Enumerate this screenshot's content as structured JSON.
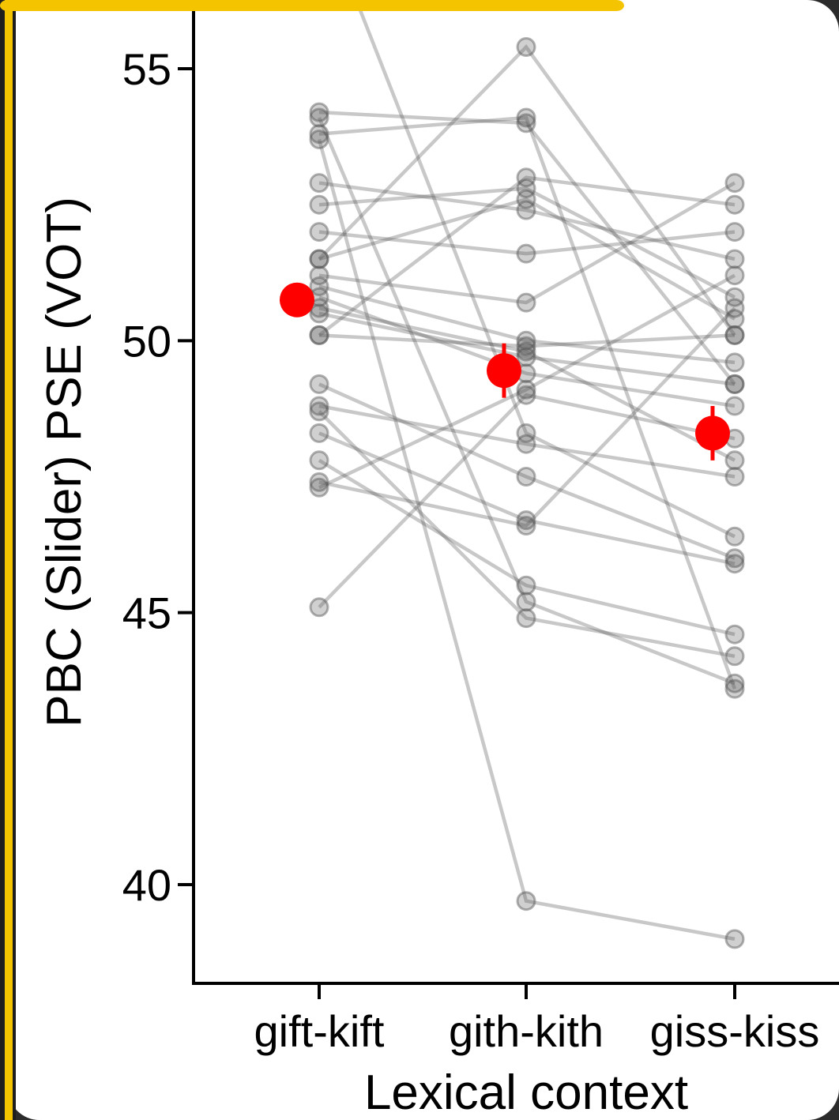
{
  "chart_data": {
    "type": "scatter",
    "title": "",
    "xlabel": "Lexical context",
    "ylabel": "PBC (Slider) PSE (VOT)",
    "categories": [
      "gift-kift",
      "gith-kith",
      "giss-kiss"
    ],
    "ylim": [
      38.2,
      56.2
    ],
    "yticks": [
      40,
      45,
      50,
      55
    ],
    "grid": false,
    "legend": "none",
    "colors": {
      "individual": "#555555",
      "mean": "#ff0000",
      "frame": "#f5c400"
    },
    "individual_lines": [
      [
        58.0,
        48.3,
        46.4
      ],
      [
        54.2,
        54.0,
        49.2
      ],
      [
        53.8,
        54.1,
        43.6
      ],
      [
        52.9,
        52.4,
        51.5
      ],
      [
        52.5,
        52.8,
        50.8
      ],
      [
        52.0,
        51.6,
        52.0
      ],
      [
        51.5,
        52.6,
        50.4
      ],
      [
        51.2,
        50.7,
        52.9
      ],
      [
        51.0,
        50.0,
        49.6
      ],
      [
        50.8,
        49.4,
        48.8
      ],
      [
        50.6,
        49.8,
        47.8
      ],
      [
        50.5,
        49.7,
        49.2
      ],
      [
        50.1,
        49.9,
        50.1
      ],
      [
        50.1,
        53.0,
        52.5
      ],
      [
        49.2,
        47.5,
        46.0
      ],
      [
        48.8,
        48.1,
        47.5
      ],
      [
        48.7,
        44.9,
        44.2
      ],
      [
        48.3,
        46.7,
        45.9
      ],
      [
        47.8,
        45.5,
        44.6
      ],
      [
        47.4,
        46.6,
        50.6
      ],
      [
        47.3,
        49.1,
        51.2
      ],
      [
        45.1,
        49.0,
        48.2
      ],
      [
        54.1,
        45.2,
        43.7
      ],
      [
        53.7,
        39.7,
        39.0
      ],
      [
        51.5,
        55.4,
        50.1
      ]
    ],
    "means": [
      {
        "category": "gift-kift",
        "value": 50.75,
        "error": 0.2
      },
      {
        "category": "gith-kith",
        "value": 49.45,
        "error": 0.5
      },
      {
        "category": "giss-kiss",
        "value": 48.3,
        "error": 0.5
      }
    ]
  }
}
